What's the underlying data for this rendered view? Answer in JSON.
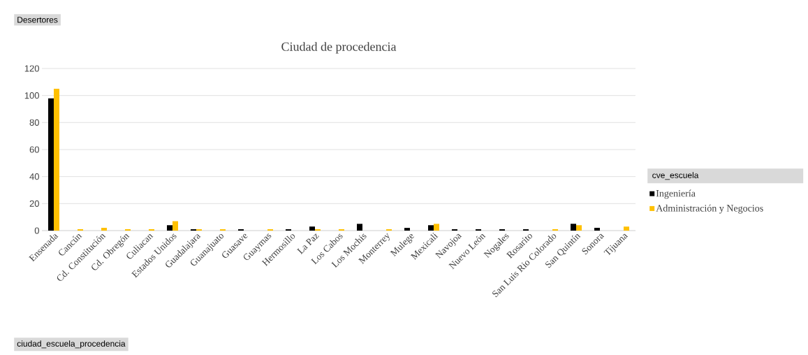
{
  "chart_data": {
    "type": "bar",
    "title": "Ciudad de procedencia",
    "categories": [
      "Ensenada",
      "Cancún",
      "Cd. Constitución",
      "Cd. Obregón",
      "Culiacan",
      "Estados Unidos",
      "Guadalajara",
      "Guanajuato",
      "Guasave",
      "Guaymas",
      "Hermosillo",
      "La Paz",
      "Los Cabos",
      "Los Mochis",
      "Monterrey",
      "Mulege",
      "Mexicali",
      "Navojoa",
      "Nuevo León",
      "Nogales",
      "Rosarito",
      "San Luis Rio Colorado",
      "San Quintín",
      "Sonora",
      "Tijuana"
    ],
    "series": [
      {
        "name": "Ingeniería",
        "color": "#000000",
        "values": [
          98,
          null,
          null,
          null,
          null,
          4,
          1,
          null,
          1,
          null,
          1,
          3,
          null,
          5,
          null,
          2,
          4,
          1,
          1,
          1,
          1,
          null,
          5,
          2,
          null
        ]
      },
      {
        "name": "Administración y Negocios",
        "color": "#ffc000",
        "values": [
          105,
          1,
          2,
          1,
          1,
          7,
          1,
          1,
          null,
          1,
          null,
          1,
          1,
          null,
          1,
          null,
          5,
          null,
          null,
          null,
          null,
          1,
          4,
          null,
          3
        ]
      }
    ],
    "ylim": [
      0,
      120
    ],
    "yticks": [
      0,
      20,
      40,
      60,
      80,
      100,
      120
    ],
    "grid": "y",
    "legend": "right",
    "legend_title": "cve_escuela",
    "annotations": [
      "Desertores",
      "ciudad_escuela_procedencia"
    ]
  }
}
